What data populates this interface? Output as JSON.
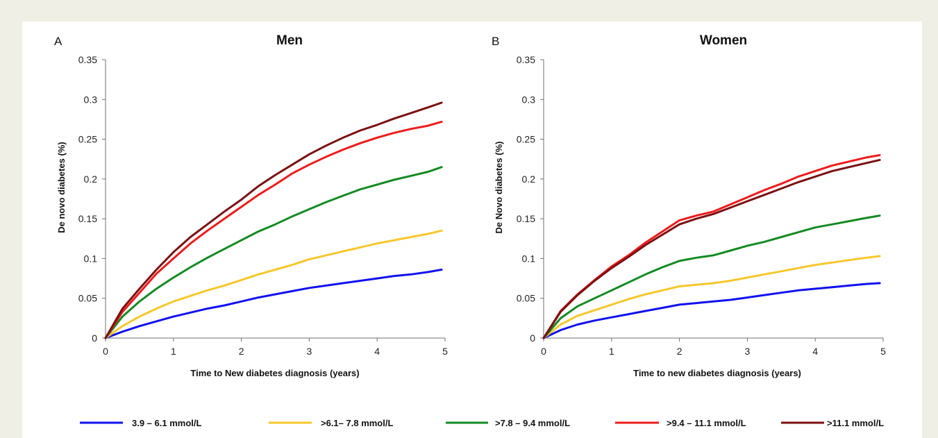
{
  "chart_data": [
    {
      "panel": "A",
      "type": "line",
      "title": "Men",
      "xlabel": "Time to New diabetes diagnosis  (years)",
      "ylabel": "De novo diabetes  (%)",
      "xlim": [
        0,
        5
      ],
      "ylim": [
        0,
        0.35
      ],
      "xticks": [
        "0",
        "1",
        "2",
        "3",
        "4",
        "5"
      ],
      "yticks": [
        "0",
        "0.05",
        "0.1",
        "0.15",
        "0.2",
        "0.25",
        "0.3",
        "0.35"
      ],
      "grid": false,
      "x": [
        0,
        0.25,
        0.5,
        0.75,
        1,
        1.25,
        1.5,
        1.75,
        2,
        2.25,
        2.5,
        2.75,
        3,
        3.25,
        3.5,
        3.75,
        4,
        4.25,
        4.5,
        4.75,
        4.95
      ],
      "series": [
        {
          "name": "3.9 – 6.1 mmol/L",
          "color": "#1010f0",
          "values": [
            0,
            0.008,
            0.015,
            0.021,
            0.027,
            0.032,
            0.037,
            0.041,
            0.046,
            0.051,
            0.055,
            0.059,
            0.063,
            0.066,
            0.069,
            0.072,
            0.075,
            0.078,
            0.08,
            0.083,
            0.086
          ]
        },
        {
          "name": ">6.1– 7.8 mmol/L",
          "color": "#f7c72a",
          "values": [
            0,
            0.015,
            0.027,
            0.037,
            0.046,
            0.053,
            0.06,
            0.066,
            0.073,
            0.08,
            0.086,
            0.092,
            0.099,
            0.104,
            0.109,
            0.114,
            0.119,
            0.123,
            0.127,
            0.131,
            0.135
          ]
        },
        {
          "name": ">7.8 – 9.4 mmol/L",
          "color": "#128a22",
          "values": [
            0,
            0.027,
            0.046,
            0.062,
            0.076,
            0.089,
            0.101,
            0.112,
            0.123,
            0.134,
            0.143,
            0.153,
            0.162,
            0.171,
            0.179,
            0.187,
            0.193,
            0.199,
            0.204,
            0.209,
            0.215
          ]
        },
        {
          "name": ">9.4 – 11.1 mmol/L",
          "color": "#ee1a1a",
          "values": [
            0,
            0.033,
            0.057,
            0.081,
            0.1,
            0.119,
            0.135,
            0.15,
            0.165,
            0.18,
            0.193,
            0.207,
            0.218,
            0.228,
            0.237,
            0.245,
            0.252,
            0.258,
            0.263,
            0.267,
            0.272
          ]
        },
        {
          "name": ">11.1 mmol/L",
          "color": "#7a0f12",
          "values": [
            0,
            0.037,
            0.062,
            0.086,
            0.108,
            0.127,
            0.143,
            0.159,
            0.174,
            0.191,
            0.205,
            0.218,
            0.231,
            0.242,
            0.252,
            0.261,
            0.268,
            0.276,
            0.283,
            0.29,
            0.296
          ]
        }
      ]
    },
    {
      "panel": "B",
      "type": "line",
      "title": "Women",
      "xlabel": "Time to new diabetes diagnosis  (years)",
      "ylabel": "De Novo diabetes (%)",
      "xlim": [
        0,
        5
      ],
      "ylim": [
        0,
        0.35
      ],
      "xticks": [
        "0",
        "1",
        "2",
        "3",
        "4",
        "5"
      ],
      "yticks": [
        "0",
        "0.05",
        "0.1",
        "0.15",
        "0.2",
        "0.25",
        "0.3",
        "0.35"
      ],
      "grid": false,
      "x": [
        0,
        0.25,
        0.5,
        0.75,
        1,
        1.25,
        1.5,
        1.75,
        2,
        2.25,
        2.5,
        2.75,
        3,
        3.25,
        3.5,
        3.75,
        4,
        4.25,
        4.5,
        4.75,
        4.95
      ],
      "series": [
        {
          "name": "3.9 – 6.1 mmol/L",
          "color": "#1010f0",
          "values": [
            0,
            0.01,
            0.017,
            0.022,
            0.026,
            0.03,
            0.034,
            0.038,
            0.042,
            0.044,
            0.046,
            0.048,
            0.051,
            0.054,
            0.057,
            0.06,
            0.062,
            0.064,
            0.066,
            0.068,
            0.069
          ]
        },
        {
          "name": ">6.1– 7.8 mmol/L",
          "color": "#f7c72a",
          "values": [
            0,
            0.017,
            0.028,
            0.035,
            0.042,
            0.049,
            0.055,
            0.06,
            0.065,
            0.067,
            0.069,
            0.072,
            0.076,
            0.08,
            0.084,
            0.088,
            0.092,
            0.095,
            0.098,
            0.101,
            0.103
          ]
        },
        {
          "name": ">7.8 – 9.4 mmol/L",
          "color": "#128a22",
          "values": [
            0,
            0.025,
            0.04,
            0.05,
            0.06,
            0.07,
            0.08,
            0.089,
            0.097,
            0.101,
            0.104,
            0.11,
            0.116,
            0.121,
            0.127,
            0.133,
            0.139,
            0.143,
            0.147,
            0.151,
            0.154
          ]
        },
        {
          "name": ">9.4 – 11.1 mmol/L",
          "color": "#ee1a1a",
          "values": [
            0,
            0.034,
            0.055,
            0.073,
            0.09,
            0.104,
            0.12,
            0.134,
            0.148,
            0.154,
            0.159,
            0.168,
            0.177,
            0.186,
            0.194,
            0.203,
            0.21,
            0.217,
            0.222,
            0.227,
            0.23
          ]
        },
        {
          "name": ">11.1 mmol/L",
          "color": "#7a0f12",
          "values": [
            0,
            0.033,
            0.054,
            0.072,
            0.088,
            0.102,
            0.117,
            0.13,
            0.143,
            0.15,
            0.156,
            0.164,
            0.172,
            0.18,
            0.188,
            0.196,
            0.203,
            0.21,
            0.215,
            0.22,
            0.224
          ]
        }
      ]
    }
  ],
  "legend": {
    "placement": "bottom",
    "items": [
      {
        "label": "3.9 – 6.1 mmol/L",
        "color": "#1010f0"
      },
      {
        "label": ">6.1– 7.8 mmol/L",
        "color": "#f7c72a"
      },
      {
        "label": ">7.8 – 9.4 mmol/L",
        "color": "#128a22"
      },
      {
        "label": ">9.4 – 11.1 mmol/L",
        "color": "#ee1a1a"
      },
      {
        "label": ">11.1 mmol/L",
        "color": "#7a0f12"
      }
    ]
  }
}
